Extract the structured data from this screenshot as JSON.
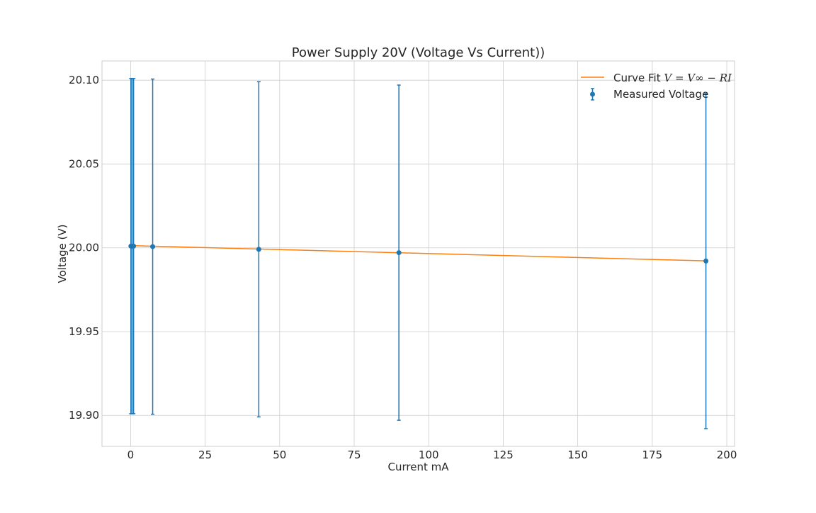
{
  "chart_data": {
    "type": "scatter",
    "title": "Power Supply 20V (Voltage Vs Current))",
    "xlabel": "Current mA",
    "ylabel": "Voltage (V)",
    "xlim": [
      -9.6,
      202.6
    ],
    "ylim": [
      19.8815,
      20.1115
    ],
    "x_ticks": [
      0,
      25,
      50,
      75,
      100,
      125,
      150,
      175,
      200
    ],
    "y_ticks": [
      19.9,
      19.95,
      20.0,
      20.05,
      20.1
    ],
    "x_tick_labels": [
      "0",
      "25",
      "50",
      "75",
      "100",
      "125",
      "150",
      "175",
      "200"
    ],
    "y_tick_labels": [
      "19.90",
      "19.95",
      "20.00",
      "20.05",
      "20.10"
    ],
    "grid": true,
    "legend_position": "top-right",
    "legend": {
      "fit_label_prefix": "Curve Fit ",
      "fit_label_math": "V = V∞ − RI",
      "measured_label": "Measured Voltage"
    },
    "series": [
      {
        "name": "Curve Fit V = V∞ − RI",
        "kind": "line",
        "color": "#ff7f0e",
        "x": [
          0.1,
          193
        ],
        "y": [
          20.0013,
          19.9922
        ]
      },
      {
        "name": "Measured Voltage",
        "kind": "errorbar",
        "color": "#1f77b4",
        "x": [
          0.1,
          0.5,
          1.0,
          7.4,
          43.0,
          90.0,
          193.0
        ],
        "y": [
          20.001,
          20.001,
          20.001,
          20.0007,
          19.9991,
          19.9971,
          19.9921
        ],
        "yerr": [
          0.1,
          0.1,
          0.1,
          0.1,
          0.1,
          0.1,
          0.1
        ]
      }
    ]
  }
}
